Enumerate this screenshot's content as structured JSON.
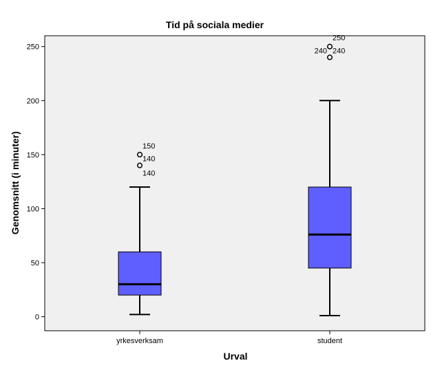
{
  "chart_data": {
    "type": "boxplot",
    "title": "Tid på sociala medier",
    "xlabel": "Urval",
    "ylabel": "Genomsnitt (i minuter)",
    "ylim": [
      -13,
      260
    ],
    "yticks": [
      0,
      50,
      100,
      150,
      200,
      250
    ],
    "grid": false,
    "categories": [
      "yrkesverksam",
      "student"
    ],
    "boxes": [
      {
        "category": "yrkesverksam",
        "whisker_low": 2,
        "q1": 20,
        "median": 30,
        "q3": 60,
        "whisker_high": 120,
        "outliers": [
          {
            "value": 150,
            "label": "150"
          },
          {
            "value": 140,
            "label": "140"
          }
        ],
        "extra_labels": [
          "140"
        ]
      },
      {
        "category": "student",
        "whisker_low": 1,
        "q1": 45,
        "median": 76,
        "q3": 120,
        "whisker_high": 200,
        "outliers": [
          {
            "value": 250,
            "label": "250"
          },
          {
            "value": 240,
            "label": "240"
          }
        ],
        "extra_labels": [
          "240"
        ]
      }
    ],
    "colors": {
      "box_fill": "#5f5fff",
      "plot_background": "#f0f0f0",
      "line": "#000000"
    }
  }
}
